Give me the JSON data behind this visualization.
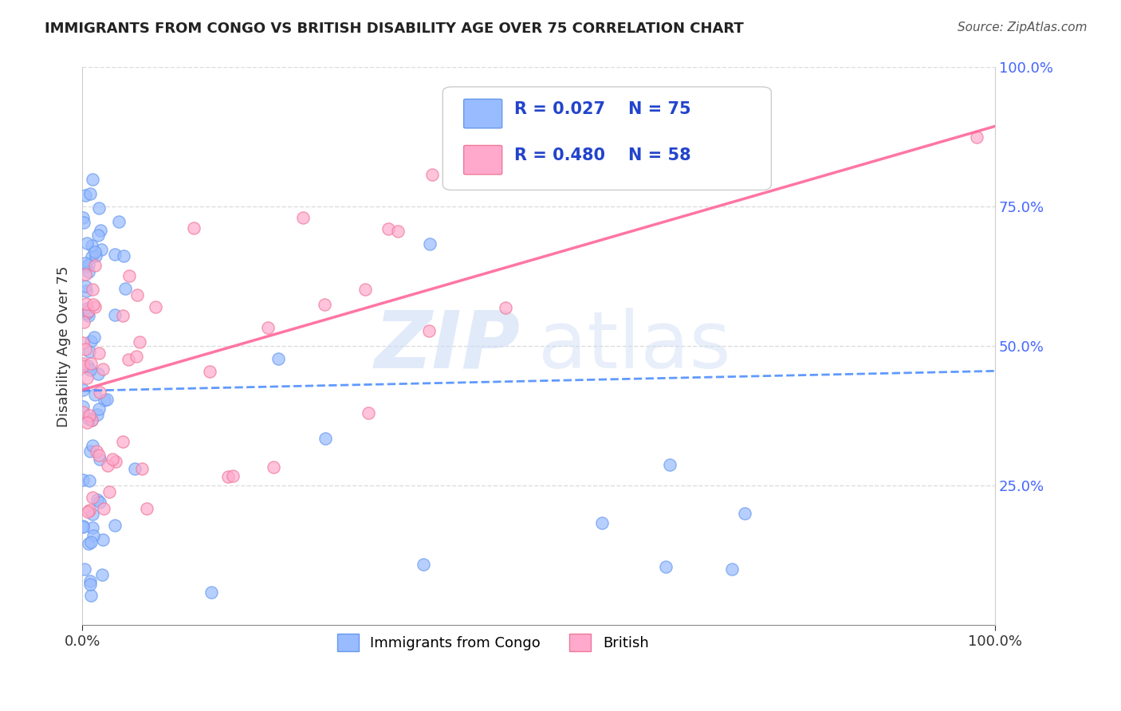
{
  "title": "IMMIGRANTS FROM CONGO VS BRITISH DISABILITY AGE OVER 75 CORRELATION CHART",
  "source": "Source: ZipAtlas.com",
  "ylabel": "Disability Age Over 75",
  "xlim": [
    0,
    1
  ],
  "ylim": [
    0,
    1
  ],
  "y_tick_labels_right": [
    "25.0%",
    "50.0%",
    "75.0%",
    "100.0%"
  ],
  "legend_r1": "0.027",
  "legend_n1": "75",
  "legend_r2": "0.480",
  "legend_n2": "58",
  "legend_label1": "Immigrants from Congo",
  "legend_label2": "British",
  "congo_color": "#99bbff",
  "congo_edge": "#6699ee",
  "british_color": "#ffaacc",
  "british_edge": "#ee7799",
  "trendline1_color": "#4488ff",
  "trendline2_color": "#ff6699",
  "background_color": "#ffffff",
  "grid_color": "#dddddd"
}
